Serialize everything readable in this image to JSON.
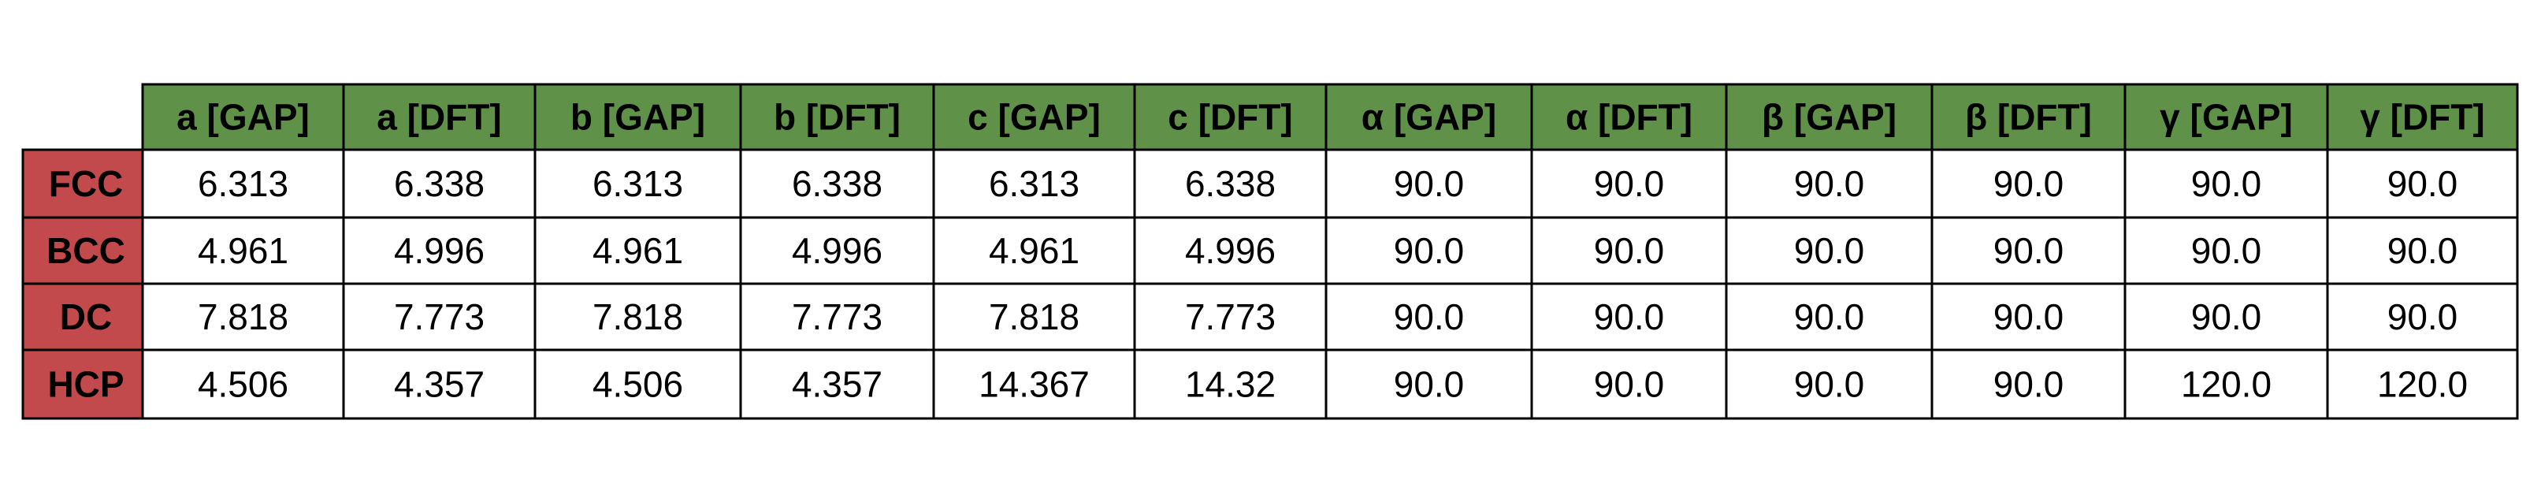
{
  "table": {
    "columns": [
      "a [GAP]",
      "a [DFT]",
      "b [GAP]",
      "b [DFT]",
      "c [GAP]",
      "c [DFT]",
      "α [GAP]",
      "α [DFT]",
      "β [GAP]",
      "β [DFT]",
      "γ [GAP]",
      "γ [DFT]"
    ],
    "rows": [
      {
        "label": "FCC",
        "cells": [
          "6.313",
          "6.338",
          "6.313",
          "6.338",
          "6.313",
          "6.338",
          "90.0",
          "90.0",
          "90.0",
          "90.0",
          "90.0",
          "90.0"
        ]
      },
      {
        "label": "BCC",
        "cells": [
          "4.961",
          "4.996",
          "4.961",
          "4.996",
          "4.961",
          "4.996",
          "90.0",
          "90.0",
          "90.0",
          "90.0",
          "90.0",
          "90.0"
        ]
      },
      {
        "label": "DC",
        "cells": [
          "7.818",
          "7.773",
          "7.818",
          "7.773",
          "7.818",
          "7.773",
          "90.0",
          "90.0",
          "90.0",
          "90.0",
          "90.0",
          "90.0"
        ]
      },
      {
        "label": "HCP",
        "cells": [
          "4.506",
          "4.357",
          "4.506",
          "4.357",
          "14.367",
          "14.32",
          "90.0",
          "90.0",
          "90.0",
          "90.0",
          "120.0",
          "120.0"
        ]
      }
    ]
  }
}
